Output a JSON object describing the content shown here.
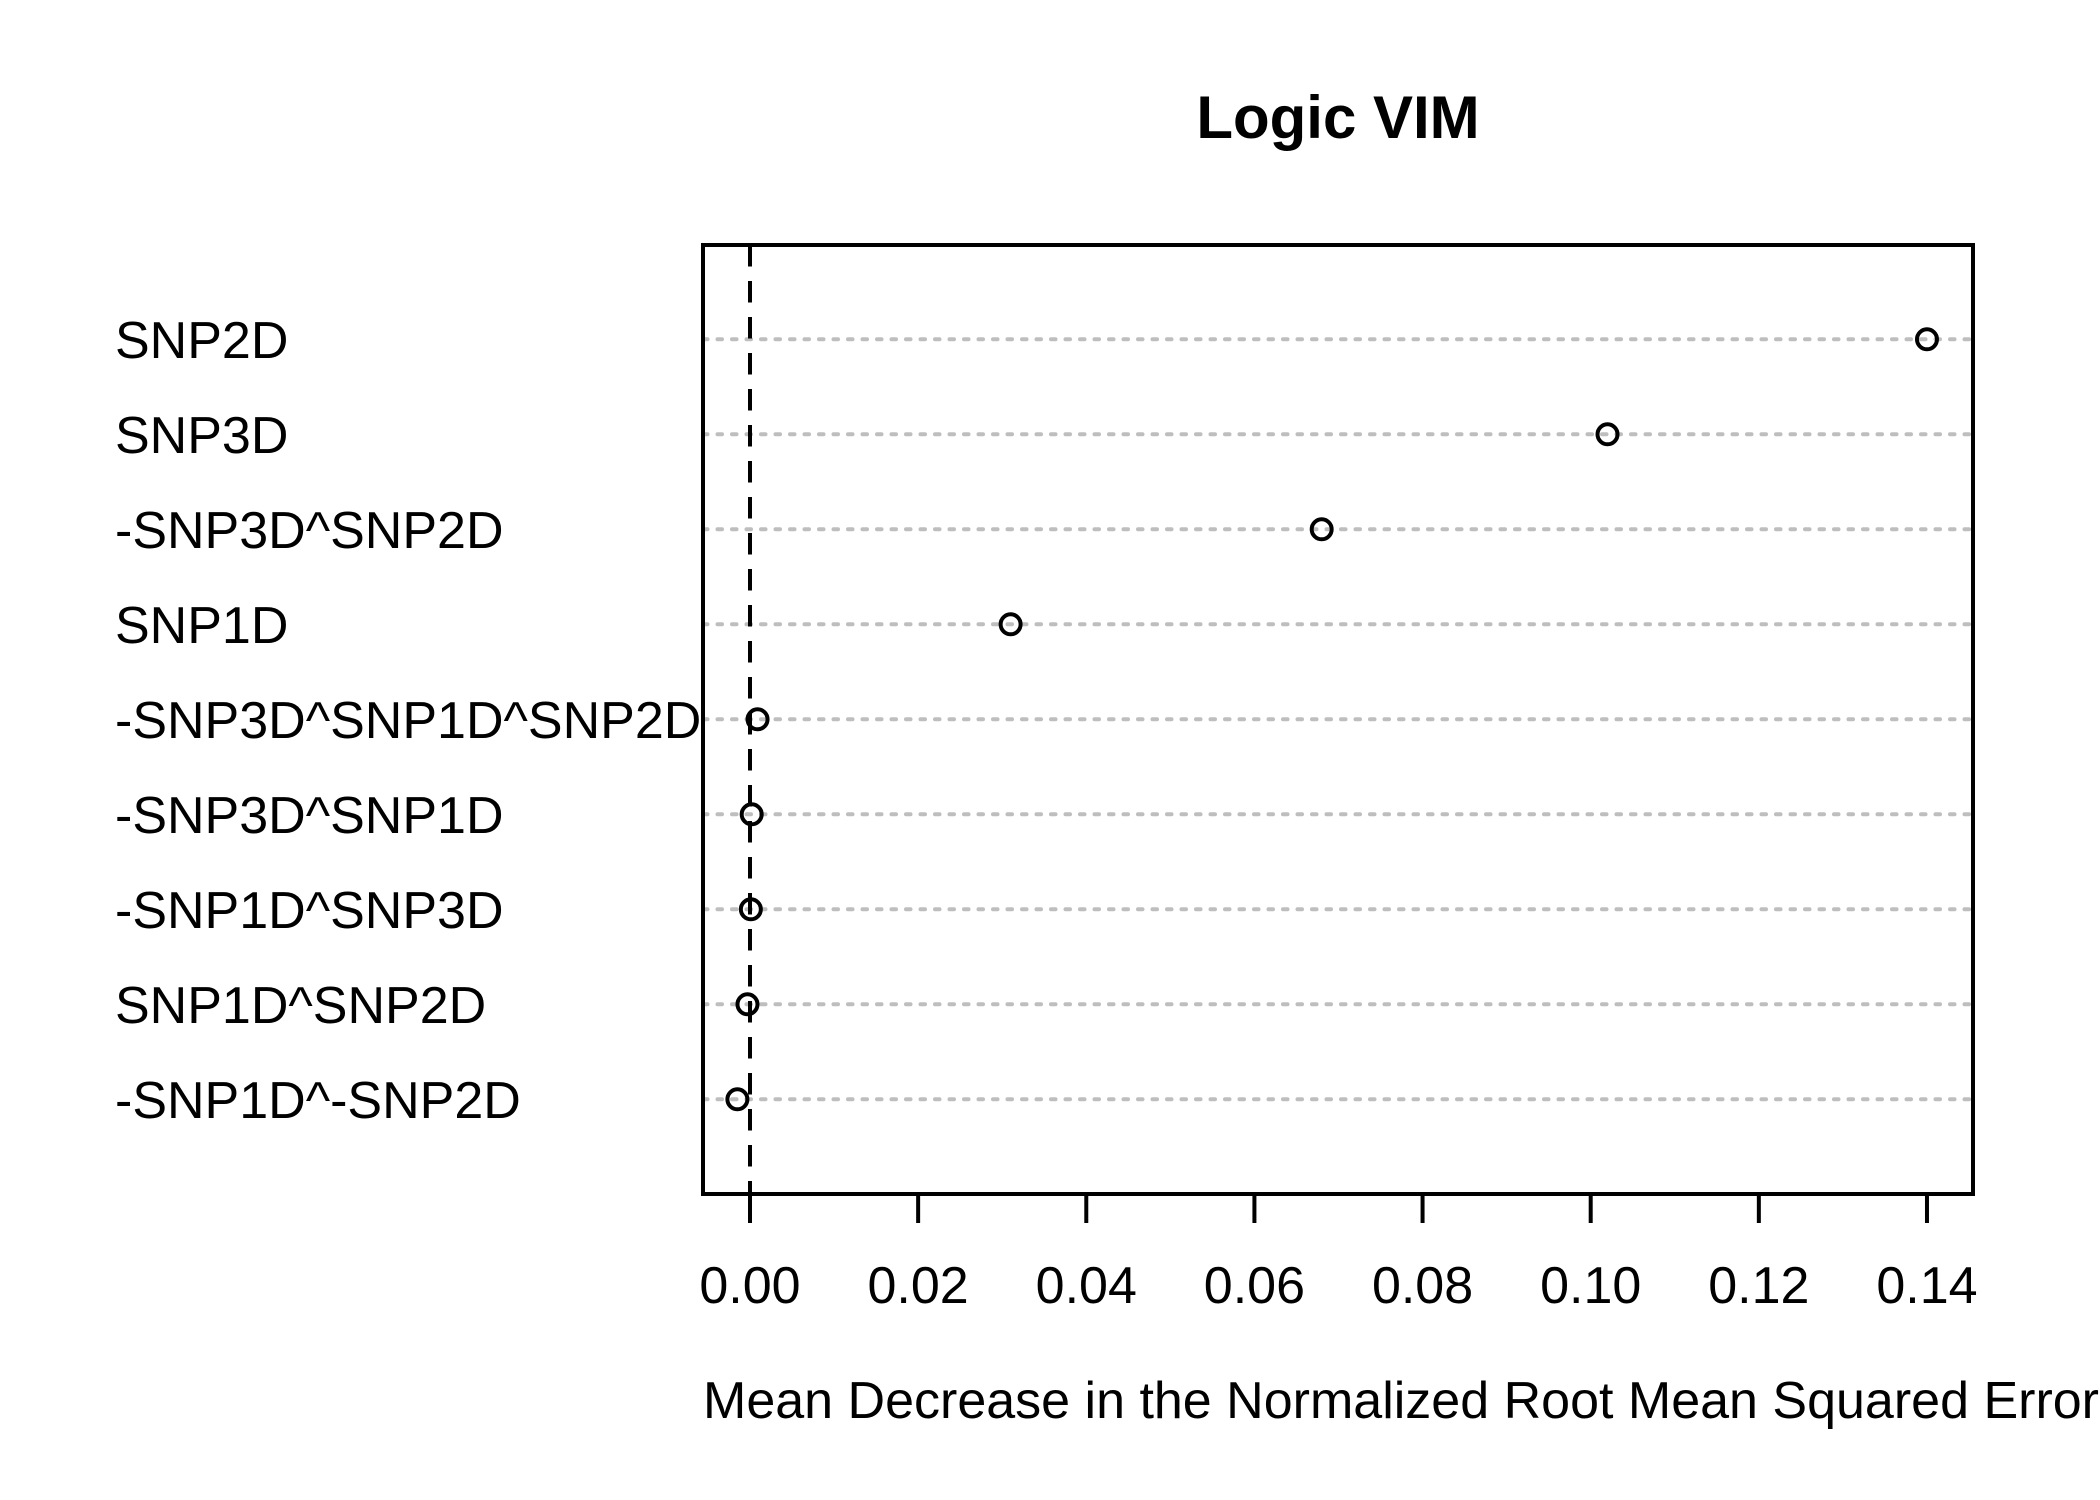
{
  "chart_data": {
    "type": "scatter",
    "subtype": "dotchart",
    "title": "Logic VIM",
    "xlabel": "Mean Decrease in the Normalized Root Mean Squared Error",
    "ylabel": "",
    "categories": [
      "SNP2D",
      "SNP3D",
      "-SNP3D^SNP2D",
      "SNP1D",
      "-SNP3D^SNP1D^SNP2D",
      "-SNP3D^SNP1D",
      "-SNP1D^SNP3D",
      "SNP1D^SNP2D",
      "-SNP1D^-SNP2D"
    ],
    "values": [
      0.14,
      0.102,
      0.068,
      0.031,
      0.0009,
      0.0002,
      0.0001,
      -0.0003,
      -0.0015
    ],
    "x_ticks": [
      0.0,
      0.02,
      0.04,
      0.06,
      0.08,
      0.1,
      0.12,
      0.14
    ],
    "x_tick_labels": [
      "0.00",
      "0.02",
      "0.04",
      "0.06",
      "0.08",
      "0.10",
      "0.12",
      "0.14"
    ],
    "xlim": [
      -0.0056,
      0.1455
    ],
    "reference_line_x": 0.0,
    "grid": true,
    "grid_style": "dotted",
    "legend_position": "none",
    "point_style": "open-circle",
    "colors": {
      "background": "#FFFFFF",
      "points": "#000000",
      "box": "#000000",
      "grid": "#BEBEBE",
      "reference_line": "#000000",
      "text": "#000000"
    }
  }
}
